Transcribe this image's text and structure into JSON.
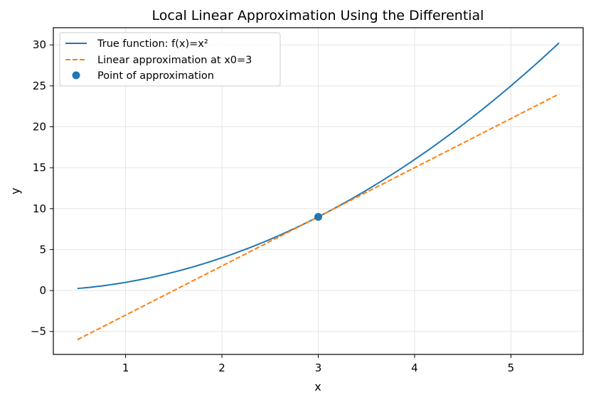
{
  "chart_data": {
    "type": "line",
    "title": "Local Linear Approximation Using the Differential",
    "xlabel": "x",
    "ylabel": "y",
    "xlim": [
      0.25,
      5.75
    ],
    "ylim": [
      -7.8,
      32.1
    ],
    "xticks": [
      1,
      2,
      3,
      4,
      5
    ],
    "yticks": [
      -5,
      0,
      5,
      10,
      15,
      20,
      25,
      30
    ],
    "ytick_labels": [
      "−5",
      "0",
      "5",
      "10",
      "15",
      "20",
      "25",
      "30"
    ],
    "grid": true,
    "legend_position": "top-left",
    "x_range": [
      0.5,
      5.5
    ],
    "series": [
      {
        "name": "True function: f(x)=x²",
        "kind": "line",
        "style": "solid",
        "color": "#1f77b4",
        "function": "x^2"
      },
      {
        "name": "Linear approximation at x0=3",
        "kind": "line",
        "style": "dashed",
        "color": "#ff7f0e",
        "function": "9 + 6(x - 3)"
      },
      {
        "name": "Point of approximation",
        "kind": "scatter",
        "color": "#1f77b4",
        "points": [
          [
            3,
            9
          ]
        ]
      }
    ]
  }
}
